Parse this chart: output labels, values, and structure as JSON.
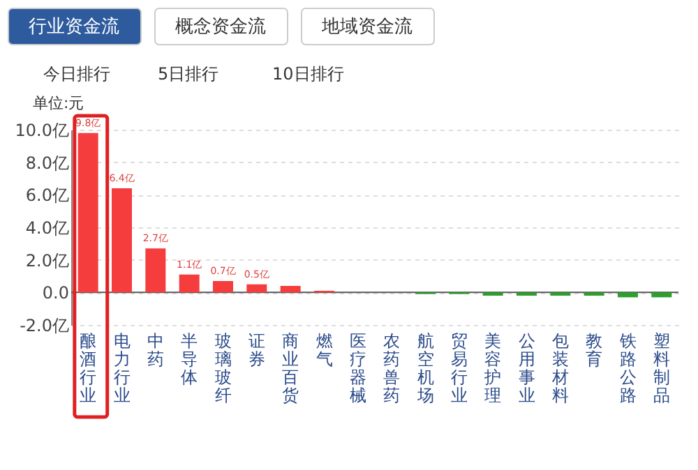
{
  "chart_data": {
    "type": "bar",
    "ylabel": "单位:元",
    "annotations": [
      "行业资金流",
      "概念资金流",
      "地域资金流",
      "今日排行",
      "5日排行",
      "10日排行"
    ],
    "categories": [
      "酿酒行业",
      "电力行业",
      "中药",
      "半导体",
      "玻璃玻纤",
      "证券",
      "商业百货",
      "燃气",
      "医疗器械",
      "农药兽药",
      "航空机场",
      "贸易行业",
      "美容护理",
      "公用事业",
      "包装材料",
      "教育",
      "铁路公路",
      "塑料制品"
    ],
    "values": [
      9.8,
      6.4,
      2.7,
      1.1,
      0.7,
      0.5,
      0.4,
      0.1,
      0,
      0,
      -0.1,
      -0.1,
      -0.2,
      -0.2,
      -0.2,
      -0.2,
      -0.3,
      -0.3
    ],
    "value_labels": [
      "9.8亿",
      "6.4亿",
      "2.7亿",
      "1.1亿",
      "0.7亿",
      "0.5亿",
      null,
      null,
      null,
      null,
      null,
      null,
      null,
      null,
      null,
      null,
      null,
      null
    ],
    "colors": [
      "#f53d3d",
      "#f53d3d",
      "#f53d3d",
      "#f53d3d",
      "#f53d3d",
      "#f53d3d",
      "#f53d3d",
      "#f53d3d",
      "#f53d3d",
      "#2e9e2e",
      "#2e9e2e",
      "#2e9e2e",
      "#2e9e2e",
      "#2e9e2e",
      "#2e9e2e",
      "#2e9e2e",
      "#2e9e2e",
      "#2e9e2e"
    ],
    "ylim": [
      -2,
      10
    ],
    "yticks": [
      {
        "value": -2,
        "label": "-2.0亿"
      },
      {
        "value": 0,
        "label": "0.0"
      },
      {
        "value": 2,
        "label": "2.0亿"
      },
      {
        "value": 4,
        "label": "4.0亿"
      },
      {
        "value": 6,
        "label": "6.0亿"
      },
      {
        "value": 8,
        "label": "8.0亿"
      },
      {
        "value": 10,
        "label": "10.0亿"
      }
    ],
    "grid": "y"
  }
}
